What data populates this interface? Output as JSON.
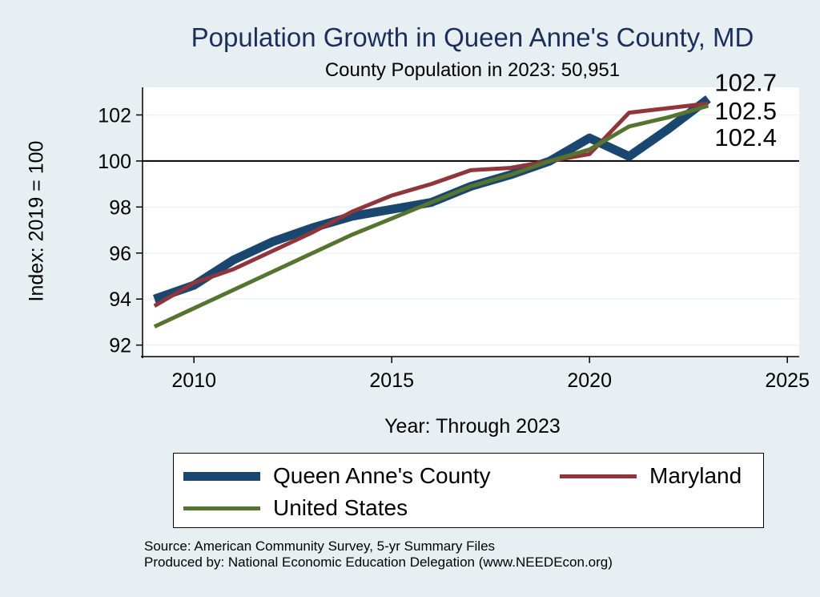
{
  "chart_data": {
    "type": "line",
    "title": "Population Growth in Queen Anne's County, MD",
    "subtitle": "County Population in 2023: 50,951",
    "xlabel": "Year: Through 2023",
    "ylabel": "Index: 2019 = 100",
    "xlim": [
      2008.7,
      2025.3
    ],
    "ylim": [
      91.5,
      103.2
    ],
    "xticks": [
      2010,
      2015,
      2020,
      2025
    ],
    "yticks": [
      92,
      94,
      96,
      98,
      100,
      102
    ],
    "reference_line_y": 100,
    "grid": true,
    "legend_position": "bottom",
    "x": [
      2009,
      2010,
      2011,
      2012,
      2013,
      2014,
      2015,
      2016,
      2017,
      2018,
      2019,
      2020,
      2021,
      2022,
      2023
    ],
    "series": [
      {
        "name": "Queen Anne's  County",
        "color": "#1a476f",
        "width": 11,
        "values": [
          94.0,
          94.6,
          95.7,
          96.5,
          97.1,
          97.6,
          97.9,
          98.2,
          98.9,
          99.4,
          100.0,
          101.0,
          100.2,
          101.4,
          102.7
        ]
      },
      {
        "name": "Maryland",
        "color": "#90353b",
        "width": 5,
        "values": [
          93.7,
          94.7,
          95.3,
          96.1,
          96.9,
          97.8,
          98.5,
          99.0,
          99.6,
          99.7,
          100.0,
          100.3,
          102.1,
          102.3,
          102.5
        ]
      },
      {
        "name": "United States",
        "color": "#55752f",
        "width": 5,
        "values": [
          92.8,
          93.6,
          94.4,
          95.2,
          96.0,
          96.8,
          97.5,
          98.2,
          98.9,
          99.4,
          100.0,
          100.5,
          101.5,
          101.9,
          102.4
        ]
      }
    ],
    "end_labels": [
      "102.7",
      "102.5",
      "102.4"
    ]
  },
  "source": {
    "line1": "Source: American Community Survey, 5-yr Summary Files",
    "line2": "Produced by: National Economic Education Delegation (www.NEEDEcon.org)"
  }
}
